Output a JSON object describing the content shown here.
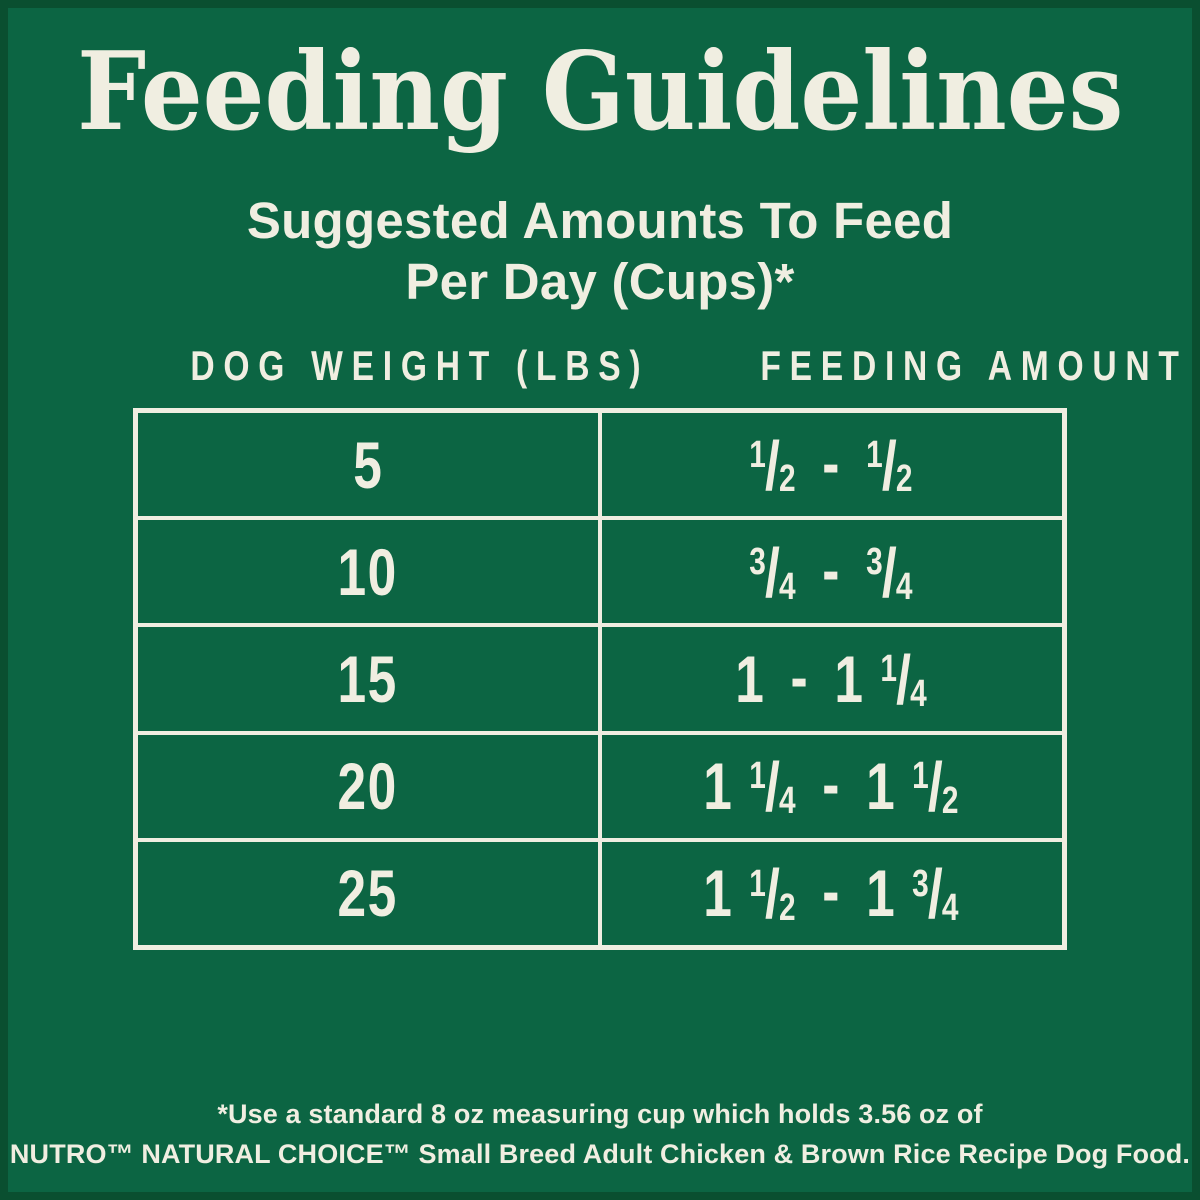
{
  "chart_data": {
    "type": "table",
    "title": "Feeding Guidelines",
    "subtitle": "Suggested Amounts To Feed Per Day (Cups)*",
    "columns": [
      "DOG WEIGHT (LBS)",
      "FEEDING AMOUNT"
    ],
    "rows": [
      {
        "weight": "5",
        "amount": "1/2 - 1/2"
      },
      {
        "weight": "10",
        "amount": "3/4 - 3/4"
      },
      {
        "weight": "15",
        "amount": "1 - 1 1/4"
      },
      {
        "weight": "20",
        "amount": "1 1/4 - 1 1/2"
      },
      {
        "weight": "25",
        "amount": "1 1/2 - 1 3/4"
      }
    ],
    "footnote": "*Use a standard 8 oz measuring cup which holds 3.56 oz of NUTRO™ NATURAL CHOICE™ Small Breed Adult Chicken & Brown Rice Recipe Dog Food."
  },
  "subtitle_lines": [
    "Suggested Amounts To Feed",
    "Per Day (Cups)*"
  ],
  "footnote_lines": [
    "*Use a standard 8 oz measuring cup which holds 3.56 oz of",
    "NUTRO™ NATURAL CHOICE™ Small Breed Adult Chicken & Brown Rice Recipe Dog Food."
  ],
  "colors": {
    "background": "#0c6543",
    "frame": "#0a4f30",
    "text": "#f0eee1",
    "table_border": "#f0eee1"
  }
}
